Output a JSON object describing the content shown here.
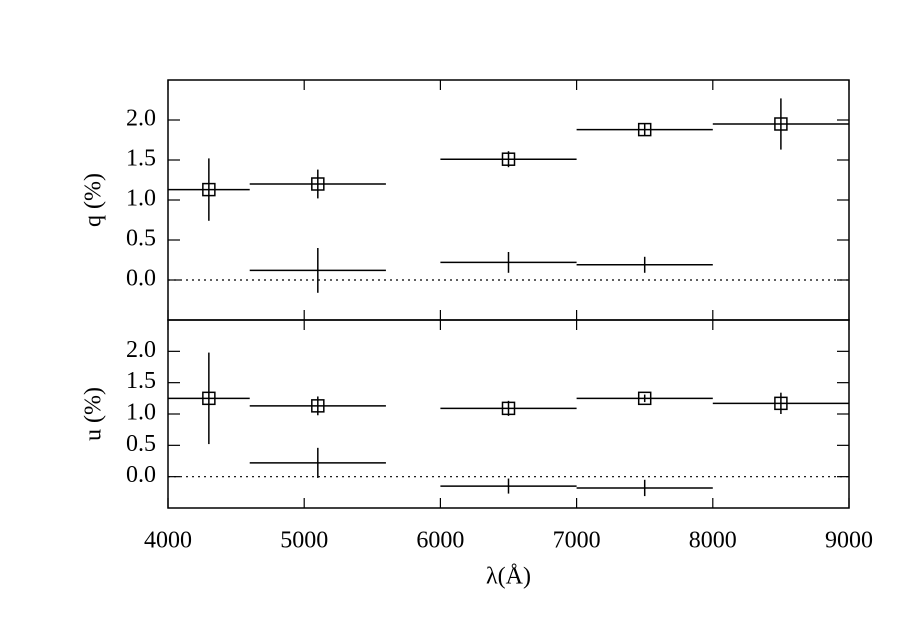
{
  "chart_data": [
    {
      "type": "errorbar",
      "ylabel": "q (%)",
      "xlim": [
        4000,
        9000
      ],
      "xticks": [
        4000,
        5000,
        6000,
        7000,
        8000,
        9000
      ],
      "show_x_labels": false,
      "ylim": [
        -0.5,
        2.5
      ],
      "yticks": [
        {
          "value": 0,
          "label": "0.0"
        },
        {
          "value": 0.5,
          "label": "0.5"
        },
        {
          "value": 1,
          "label": "1.0"
        },
        {
          "value": 1.5,
          "label": "1.5"
        },
        {
          "value": 2,
          "label": "2.0"
        }
      ],
      "zero_line": true,
      "series": [
        {
          "marker": "square",
          "color": "#000000",
          "x": [
            4300,
            5100,
            6500,
            7500,
            8500
          ],
          "x_left": [
            4000,
            4600,
            6000,
            7000,
            8000
          ],
          "x_right": [
            4600,
            5600,
            7000,
            8000,
            9000
          ],
          "values": [
            1.13,
            1.2,
            1.51,
            1.88,
            1.95
          ],
          "errors": [
            0.39,
            0.18,
            0.1,
            0.08,
            0.32
          ]
        },
        {
          "marker": "none",
          "color": "#000000",
          "x": [
            5100,
            6500,
            7500
          ],
          "x_left": [
            4600,
            6000,
            7000
          ],
          "x_right": [
            5600,
            7000,
            8000
          ],
          "values": [
            0.12,
            0.22,
            0.19
          ],
          "errors": [
            0.28,
            0.13,
            0.1
          ]
        }
      ]
    },
    {
      "type": "errorbar",
      "ylabel": "u (%)",
      "xlabel": "λ(Å)",
      "xlim": [
        4000,
        9000
      ],
      "xticks": [
        4000,
        5000,
        6000,
        7000,
        8000,
        9000
      ],
      "show_x_labels": true,
      "ylim": [
        -0.5,
        2.5
      ],
      "yticks": [
        {
          "value": 0,
          "label": "0.0"
        },
        {
          "value": 0.5,
          "label": "0.5"
        },
        {
          "value": 1,
          "label": "1.0"
        },
        {
          "value": 1.5,
          "label": "1.5"
        },
        {
          "value": 2,
          "label": "2.0"
        }
      ],
      "zero_line": true,
      "series": [
        {
          "marker": "square",
          "color": "#000000",
          "x": [
            4300,
            5100,
            6500,
            7500,
            8500
          ],
          "x_left": [
            4000,
            4600,
            6000,
            7000,
            8000
          ],
          "x_right": [
            4600,
            5600,
            7000,
            8000,
            9000
          ],
          "values": [
            1.25,
            1.13,
            1.09,
            1.25,
            1.17
          ],
          "errors": [
            0.73,
            0.15,
            0.12,
            0.06,
            0.17
          ]
        },
        {
          "marker": "none",
          "color": "#000000",
          "x": [
            5100,
            6500,
            7500
          ],
          "x_left": [
            4600,
            6000,
            7000
          ],
          "x_right": [
            5600,
            7000,
            8000
          ],
          "values": [
            0.22,
            -0.15,
            -0.18
          ],
          "errors": [
            0.24,
            0.12,
            0.13
          ]
        }
      ]
    }
  ]
}
